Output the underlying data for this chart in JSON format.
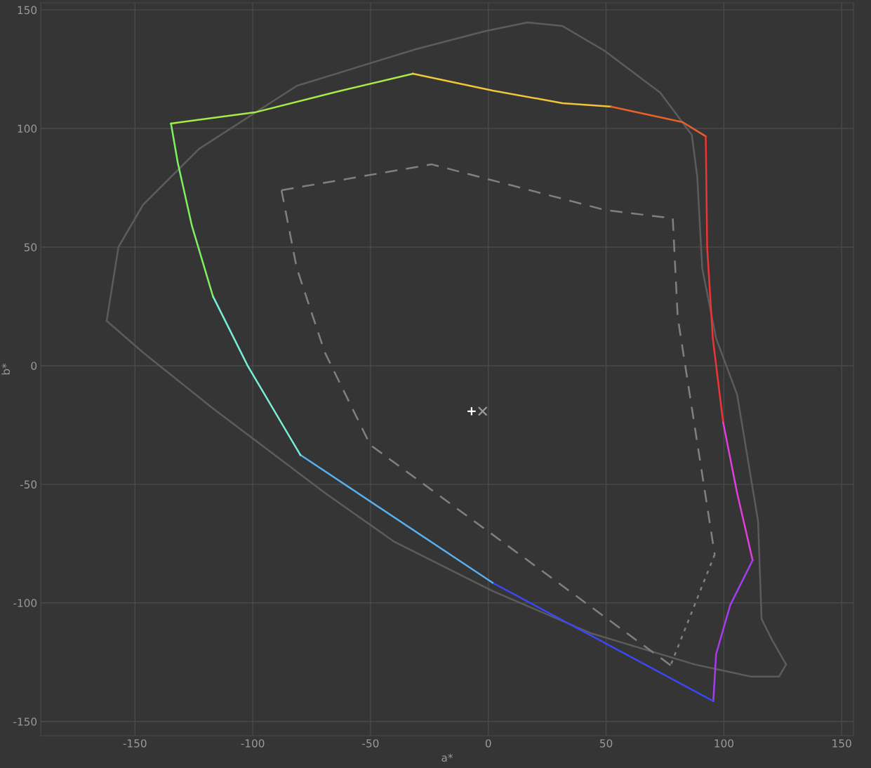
{
  "chart_data": {
    "type": "line",
    "xlabel": "a*",
    "ylabel": "b*",
    "xlim": [
      -190,
      155
    ],
    "ylim": [
      -156,
      153
    ],
    "xticks": [
      -150,
      -100,
      -50,
      0,
      50,
      100,
      150
    ],
    "yticks": [
      -150,
      -100,
      -50,
      0,
      50,
      100,
      150
    ],
    "grid": true,
    "marker": "none",
    "series": [
      {
        "color": "#5c5c5c",
        "line_style": "solid",
        "x": [
          -162,
          -157,
          -146.6,
          -122.8,
          -81.3,
          -30.9,
          -1.2,
          16.6,
          31.5,
          49.3,
          73,
          86.4,
          88.7,
          90.8,
          96.7,
          105.6,
          114.5,
          116,
          120.5,
          126.4
        ],
        "values": [
          18.9,
          50,
          67.8,
          91.4,
          118,
          133.4,
          141.1,
          144.7,
          143.2,
          132.8,
          115.1,
          97.3,
          79.6,
          41.1,
          11.5,
          -12.1,
          -65.4,
          -106.8,
          -115.7,
          -126
        ]
      },
      {
        "color": "#5c5c5c",
        "line_style": "solid",
        "x": [
          126.4,
          123.4,
          111.6,
          87.8,
          43.3,
          1.8,
          -39.8,
          -69.4,
          -116.9,
          -146.6,
          -162
        ],
        "values": [
          -126,
          -131.1,
          -131.1,
          -126,
          -112.7,
          -95,
          -74.3,
          -53.6,
          -18,
          5.6,
          18.9
        ]
      },
      {
        "color": "#808080",
        "line_style": "dashed",
        "x": [
          -87.8,
          -24.0,
          49.3,
          78.3,
          80.4,
          96.1
        ],
        "values": [
          74.0,
          84.9,
          65.7,
          62.1,
          20.4,
          -79.6
        ]
      },
      {
        "color": "#808080",
        "line_style": "dotted",
        "x": [
          96.1,
          77.4
        ],
        "values": [
          -79.6,
          -126.3
        ]
      },
      {
        "color": "#808080",
        "line_style": "dashed",
        "x": [
          77.4,
          -50.1,
          -69.4,
          -81.3,
          -87.8
        ],
        "values": [
          -126.3,
          -33.4,
          5.6,
          41.1,
          74.0
        ]
      },
      {
        "color": "#a6ec48",
        "line_style": "solid",
        "x": [
          -134.7,
          -99.1,
          -63.5,
          -32.0
        ],
        "values": [
          102.1,
          106.8,
          115.7,
          123.1
        ]
      },
      {
        "color": "#f0c638",
        "line_style": "solid",
        "x": [
          -32.0,
          1.8,
          31.5,
          52.2
        ],
        "values": [
          123.1,
          116,
          110.7,
          109.2
        ]
      },
      {
        "color": "#e8602a",
        "line_style": "solid",
        "x": [
          52.2,
          82.5,
          92.3
        ],
        "values": [
          109.2,
          102.7,
          96.7
        ]
      },
      {
        "color": "#ee3535",
        "line_style": "solid",
        "x": [
          92.3,
          92.9,
          95.3,
          99.7
        ],
        "values": [
          96.7,
          50,
          11.5,
          -24
        ]
      },
      {
        "color": "#e040d8",
        "line_style": "solid",
        "x": [
          99.7,
          105.6,
          112.2
        ],
        "values": [
          -24,
          -53.6,
          -82
        ]
      },
      {
        "color": "#a53cf0",
        "line_style": "solid",
        "x": [
          112.2,
          102.7,
          96.7,
          95.5
        ],
        "values": [
          -82,
          -100.9,
          -121.6,
          -141.4
        ]
      },
      {
        "color": "#3a48fa",
        "line_style": "solid",
        "x": [
          95.5,
          1.8
        ],
        "values": [
          -141.4,
          -91.5
        ]
      },
      {
        "color": "#58b0f0",
        "line_style": "solid",
        "x": [
          1.8,
          -79.8
        ],
        "values": [
          -91.5,
          -37.6
        ]
      },
      {
        "color": "#78f0d8",
        "line_style": "solid",
        "x": [
          -79.8,
          -102,
          -116.9
        ],
        "values": [
          -37.6,
          -0.3,
          29.3
        ]
      },
      {
        "color": "#80f060",
        "line_style": "solid",
        "x": [
          -116.9,
          -125.8,
          -131.8,
          -134.7
        ],
        "values": [
          29.3,
          58.9,
          85.5,
          102.1
        ]
      },
      {
        "type": "scatter",
        "marker": "plus",
        "color": "#ffffff",
        "x": [
          -7.1
        ],
        "values": [
          -19.2
        ]
      },
      {
        "type": "scatter",
        "marker": "cross",
        "color": "#9a9a9a",
        "x": [
          -2.4
        ],
        "values": [
          -19.2
        ]
      }
    ]
  }
}
